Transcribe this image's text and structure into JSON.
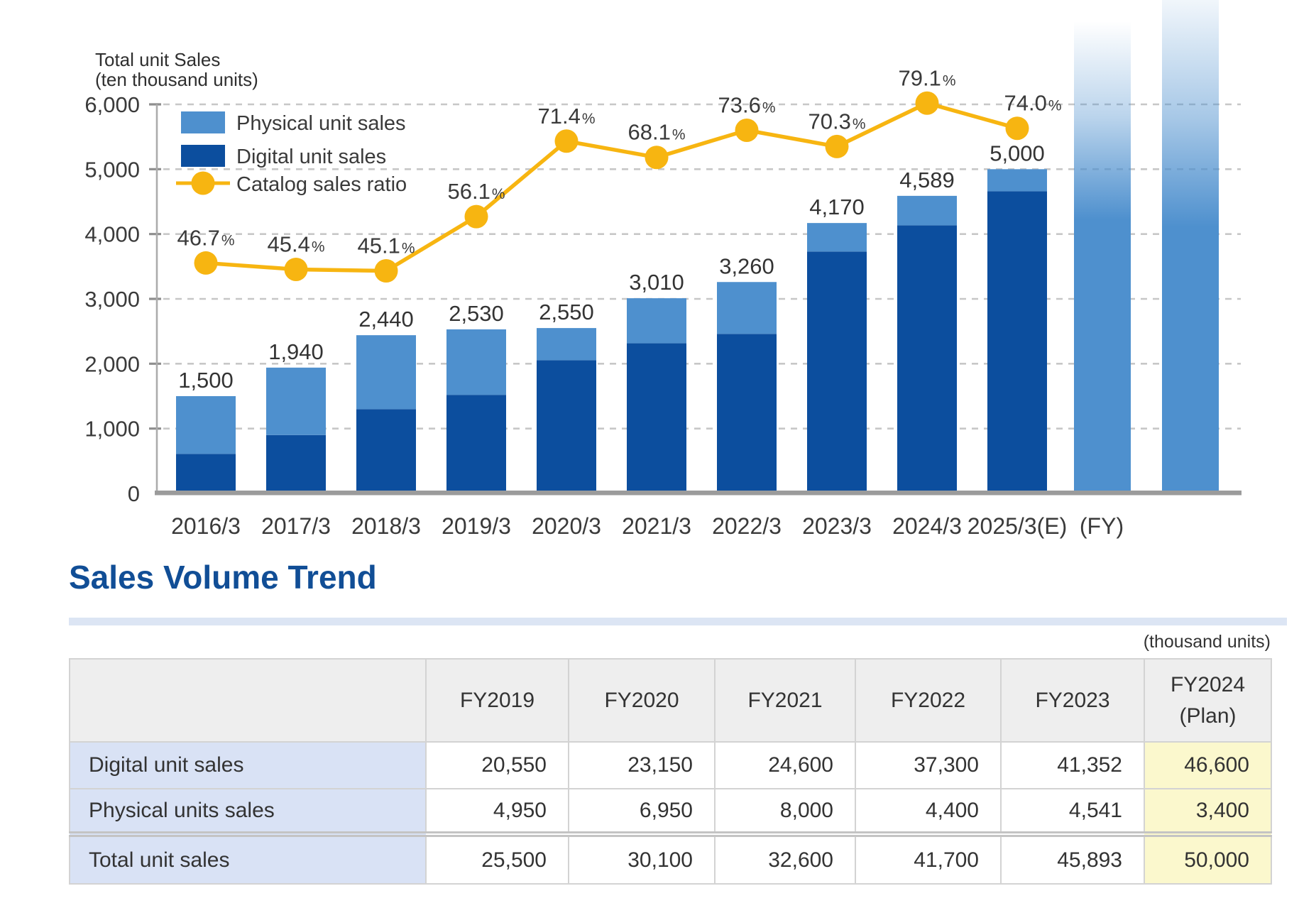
{
  "chart_data": {
    "type": "bar+line",
    "y_axis_title_lines": [
      "Total unit Sales",
      "(ten thousand units)"
    ],
    "categories": [
      "2016/3",
      "2017/3",
      "2018/3",
      "2019/3",
      "2020/3",
      "2021/3",
      "2022/3",
      "2023/3",
      "2024/3",
      "2025/3(E)"
    ],
    "x_axis_suffix": "(FY)",
    "y_ticks": [
      "0",
      "1,000",
      "2,000",
      "3,000",
      "4,000",
      "5,000",
      "6,000"
    ],
    "ylim": [
      0,
      6000
    ],
    "grid": "dashed horizontal",
    "legend_position": "top-left inside plot",
    "series": [
      {
        "name": "Digital unit sales",
        "color": "#0C4E9E",
        "values": [
          610,
          900,
          1300,
          1520,
          2055,
          2315,
          2460,
          3730,
          4135,
          4660
        ]
      },
      {
        "name": "Physical unit sales",
        "color": "#4E90CE",
        "values": [
          890,
          1040,
          1140,
          1010,
          495,
          695,
          800,
          440,
          454,
          340
        ]
      }
    ],
    "totals": [
      1500,
      1940,
      2440,
      2530,
      2550,
      3010,
      3260,
      4170,
      4589,
      5000
    ],
    "total_labels": [
      "1,500",
      "1,940",
      "2,440",
      "2,530",
      "2,550",
      "3,010",
      "3,260",
      "4,170",
      "4,589",
      "5,000"
    ],
    "line": {
      "name": "Catalog sales ratio",
      "color": "#F7B511",
      "unit": "%",
      "values": [
        46.7,
        45.4,
        45.1,
        56.1,
        71.4,
        68.1,
        73.6,
        70.3,
        79.1,
        74.0
      ]
    }
  },
  "section": {
    "title": "Sales Volume Trend"
  },
  "table": {
    "units_note": "(thousand units)",
    "columns": [
      "FY2019",
      "FY2020",
      "FY2021",
      "FY2022",
      "FY2023"
    ],
    "plan_column": {
      "line1": "FY2024",
      "line2": "(Plan)"
    },
    "rows": [
      {
        "label": "Digital unit sales",
        "values": [
          "20,550",
          "23,150",
          "24,600",
          "37,300",
          "41,352",
          "46,600"
        ]
      },
      {
        "label": "Physical units sales",
        "values": [
          "4,950",
          "6,950",
          "8,000",
          "4,400",
          "4,541",
          "3,400"
        ]
      },
      {
        "label": "Total unit sales",
        "values": [
          "25,500",
          "30,100",
          "32,600",
          "41,700",
          "45,893",
          "50,000"
        ]
      }
    ]
  },
  "colors": {
    "digital_bar": "#0C4E9E",
    "physical_bar": "#4E90CE",
    "catalog_line": "#F7B511",
    "heading_blue": "#114E96",
    "heading_rule": "#DCE5F4",
    "table_header_bg": "#EEEEEE",
    "table_label_bg": "#D9E2F5",
    "table_plan_bg": "#FBF8CD"
  }
}
